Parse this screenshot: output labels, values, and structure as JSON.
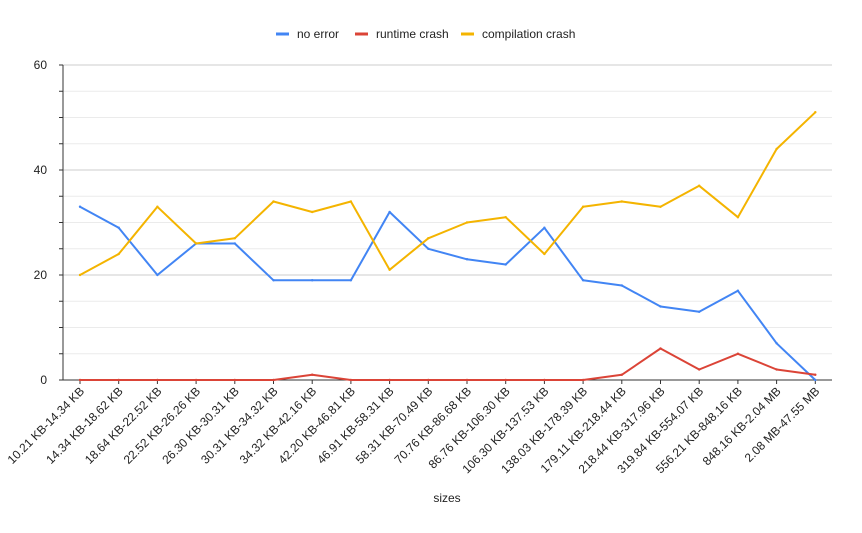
{
  "chart_data": {
    "type": "line",
    "title": "",
    "xlabel": "sizes",
    "ylabel": "",
    "ylim": [
      0,
      60
    ],
    "yticks": [
      0,
      20,
      40,
      60
    ],
    "grid": true,
    "legend_position": "top-center",
    "categories": [
      "10.21 KB-14.34 KB",
      "14.34 KB-18.62 KB",
      "18.64 KB-22.52 KB",
      "22.52 KB-26.26 KB",
      "26.30 KB-30.31 KB",
      "30.31 KB-34.32 KB",
      "34.32 KB-42.16 KB",
      "42.20 KB-46.81 KB",
      "46.91 KB-58.31 KB",
      "58.31 KB-70.49 KB",
      "70.76 KB-86.68 KB",
      "86.76 KB-106.30 KB",
      "106.30 KB-137.53 KB",
      "138.03 KB-178.39 KB",
      "179.11 KB-218.44 KB",
      "218.44 KB-317.96 KB",
      "319.84 KB-554.07 KB",
      "556.21 KB-848.16 KB",
      "848.16 KB-2.04 MB",
      "2.08 MB-47.55 MB"
    ],
    "series": [
      {
        "name": "no error",
        "color": "#4285F4",
        "values": [
          33,
          29,
          20,
          26,
          26,
          19,
          19,
          19,
          32,
          25,
          23,
          22,
          29,
          19,
          18,
          14,
          13,
          17,
          7,
          0
        ]
      },
      {
        "name": "runtime crash",
        "color": "#DB4437",
        "values": [
          0,
          0,
          0,
          0,
          0,
          0,
          1,
          0,
          0,
          0,
          0,
          0,
          0,
          0,
          1,
          6,
          2,
          5,
          2,
          1
        ]
      },
      {
        "name": "compilation crash",
        "color": "#F4B400",
        "values": [
          20,
          24,
          33,
          26,
          27,
          34,
          32,
          34,
          21,
          27,
          30,
          31,
          24,
          33,
          34,
          33,
          37,
          31,
          44,
          51
        ]
      }
    ]
  }
}
